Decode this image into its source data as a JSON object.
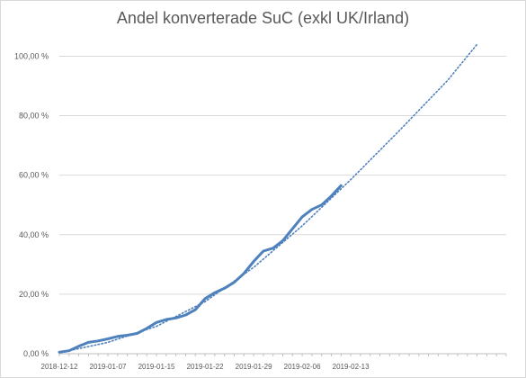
{
  "chart_data": {
    "type": "line",
    "title": "Andel konverterade SuC (exkl UK/Irland)",
    "xlabel": "",
    "ylabel": "",
    "ylim": [
      0,
      100
    ],
    "y_ticks": [
      "0,00 %",
      "20,00 %",
      "40,00 %",
      "60,00 %",
      "80,00 %",
      "100,00 %"
    ],
    "x_ticks": [
      "2018-12-12",
      "2019-01-07",
      "2019-01-15",
      "2019-01-22",
      "2019-01-29",
      "2019-02-06",
      "2019-02-13"
    ],
    "grid": true,
    "legend": "none",
    "series": [
      {
        "style": "solid",
        "color": "#4f81bd",
        "points": [
          [
            0,
            0.5
          ],
          [
            1,
            1.0
          ],
          [
            2,
            2.5
          ],
          [
            3,
            3.8
          ],
          [
            4,
            4.3
          ],
          [
            5,
            5.0
          ],
          [
            6,
            5.8
          ],
          [
            7,
            6.2
          ],
          [
            8,
            6.8
          ],
          [
            9,
            8.5
          ],
          [
            10,
            10.5
          ],
          [
            11,
            11.5
          ],
          [
            12,
            12.0
          ],
          [
            13,
            13.0
          ],
          [
            14,
            14.8
          ],
          [
            15,
            18.5
          ],
          [
            16,
            20.5
          ],
          [
            17,
            22.0
          ],
          [
            18,
            24.0
          ],
          [
            19,
            27.0
          ],
          [
            20,
            31.0
          ],
          [
            21,
            34.5
          ],
          [
            22,
            35.5
          ],
          [
            23,
            38.0
          ],
          [
            24,
            42.0
          ],
          [
            25,
            46.0
          ],
          [
            26,
            48.5
          ],
          [
            27,
            50.0
          ],
          [
            28,
            53.0
          ],
          [
            29,
            56.5
          ]
        ]
      },
      {
        "style": "dotted",
        "color": "#4f81bd",
        "trend": "polynomial",
        "points": [
          [
            0,
            0.3
          ],
          [
            5,
            3.8
          ],
          [
            10,
            9.2
          ],
          [
            15,
            17.5
          ],
          [
            20,
            29.0
          ],
          [
            25,
            43.0
          ],
          [
            30,
            58.5
          ],
          [
            35,
            75.0
          ],
          [
            40,
            92.0
          ],
          [
            43,
            104.0
          ]
        ]
      }
    ]
  }
}
